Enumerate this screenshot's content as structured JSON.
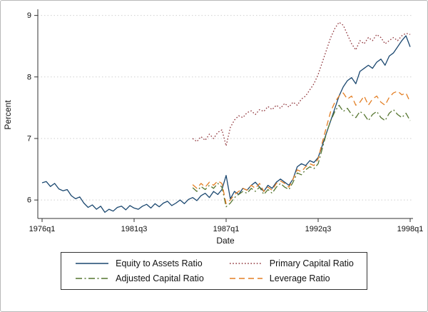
{
  "chart_data": {
    "type": "line",
    "title": "",
    "xlabel": "Date",
    "ylabel": "Percent",
    "x_unit": "quarters from 1976q1 to 1998q1",
    "x_count": 89,
    "x_ticks": [
      {
        "index": 0,
        "label": "1976q1"
      },
      {
        "index": 22,
        "label": "1981q3"
      },
      {
        "index": 44,
        "label": "1987q1"
      },
      {
        "index": 66,
        "label": "1992q3"
      },
      {
        "index": 88,
        "label": "1998q1"
      }
    ],
    "y_ticks": [
      6,
      7,
      8,
      9
    ],
    "ylim": [
      5.7,
      9.1
    ],
    "grid": "horizontal-dotted",
    "legend_position": "bottom",
    "series": [
      {
        "name": "Equity to Assets Ratio",
        "color": "#1a476f",
        "style": "solid",
        "start": 0,
        "values": [
          6.28,
          6.3,
          6.22,
          6.27,
          6.18,
          6.15,
          6.17,
          6.07,
          6.02,
          6.05,
          5.95,
          5.88,
          5.92,
          5.85,
          5.9,
          5.8,
          5.85,
          5.82,
          5.88,
          5.9,
          5.84,
          5.91,
          5.87,
          5.85,
          5.9,
          5.93,
          5.87,
          5.94,
          5.89,
          5.95,
          5.98,
          5.91,
          5.95,
          6.0,
          5.94,
          6.01,
          6.04,
          5.99,
          6.07,
          6.11,
          6.04,
          6.14,
          6.09,
          6.17,
          6.4,
          6.02,
          6.14,
          6.09,
          6.19,
          6.16,
          6.24,
          6.29,
          6.21,
          6.14,
          6.24,
          6.19,
          6.29,
          6.34,
          6.29,
          6.24,
          6.34,
          6.54,
          6.59,
          6.56,
          6.64,
          6.61,
          6.69,
          6.89,
          7.09,
          7.29,
          7.49,
          7.69,
          7.84,
          7.94,
          7.99,
          7.89,
          8.09,
          8.14,
          8.19,
          8.14,
          8.24,
          8.29,
          8.19,
          8.34,
          8.39,
          8.49,
          8.59,
          8.67,
          8.49
        ]
      },
      {
        "name": "Primary Capital Ratio",
        "color": "#90353b",
        "style": "dot",
        "start": 36,
        "values": [
          7.0,
          6.95,
          7.03,
          6.97,
          7.07,
          7.0,
          7.1,
          7.14,
          6.88,
          7.18,
          7.3,
          7.37,
          7.34,
          7.42,
          7.45,
          7.39,
          7.47,
          7.44,
          7.52,
          7.47,
          7.54,
          7.49,
          7.57,
          7.51,
          7.59,
          7.54,
          7.64,
          7.69,
          7.79,
          7.89,
          8.04,
          8.24,
          8.44,
          8.64,
          8.79,
          8.89,
          8.84,
          8.69,
          8.54,
          8.44,
          8.59,
          8.54,
          8.64,
          8.59,
          8.69,
          8.64,
          8.54,
          8.59,
          8.64,
          8.59,
          8.67,
          8.71,
          8.69
        ]
      },
      {
        "name": "Adjusted Capital Ratio",
        "color": "#55752f",
        "style": "dashdot",
        "start": 36,
        "values": [
          6.2,
          6.14,
          6.22,
          6.17,
          6.24,
          6.19,
          6.27,
          6.21,
          5.89,
          5.95,
          6.04,
          6.09,
          6.14,
          6.11,
          6.19,
          6.14,
          6.21,
          6.09,
          6.17,
          6.11,
          6.21,
          6.27,
          6.21,
          6.17,
          6.29,
          6.44,
          6.41,
          6.49,
          6.54,
          6.51,
          6.59,
          6.84,
          7.09,
          7.29,
          7.44,
          7.54,
          7.44,
          7.49,
          7.39,
          7.34,
          7.44,
          7.39,
          7.29,
          7.39,
          7.44,
          7.34,
          7.29,
          7.41,
          7.47,
          7.39,
          7.34,
          7.41,
          7.29
        ]
      },
      {
        "name": "Leverage Ratio",
        "color": "#e37e23",
        "style": "dash",
        "start": 36,
        "values": [
          6.25,
          6.19,
          6.27,
          6.21,
          6.29,
          6.24,
          6.31,
          6.27,
          5.94,
          6.0,
          6.09,
          6.14,
          6.19,
          6.16,
          6.24,
          6.19,
          6.27,
          6.14,
          6.21,
          6.16,
          6.27,
          6.31,
          6.27,
          6.21,
          6.34,
          6.49,
          6.46,
          6.54,
          6.59,
          6.56,
          6.67,
          6.94,
          7.19,
          7.44,
          7.59,
          7.69,
          7.74,
          7.64,
          7.69,
          7.54,
          7.59,
          7.69,
          7.54,
          7.64,
          7.69,
          7.59,
          7.54,
          7.67,
          7.74,
          7.77,
          7.71,
          7.74,
          7.59
        ]
      }
    ]
  }
}
